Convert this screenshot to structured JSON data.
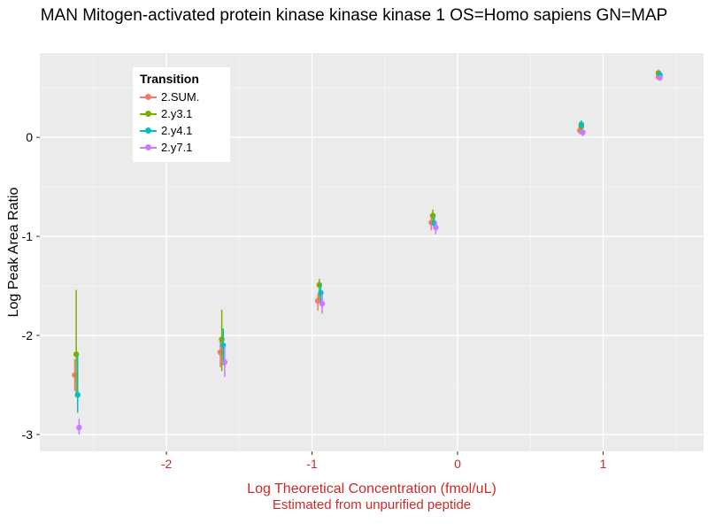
{
  "chart_data": {
    "type": "scatter",
    "title": "MAN Mitogen-activated protein kinase kinase kinase 1 OS=Homo sapiens GN=MAP",
    "ylabel": "Log Peak Area Ratio",
    "xlabel": "Log Theoretical Concentration (fmol/uL)",
    "xlabel2": "Estimated from unpurified peptide",
    "legend_title": "Transition",
    "legend_position": "top-left-inside",
    "grid": true,
    "xlim": [
      -2.87,
      1.69
    ],
    "ylim": [
      -3.17,
      0.85
    ],
    "x_ticks": [
      -2,
      -1,
      0,
      1
    ],
    "y_ticks": [
      0,
      -1,
      -2,
      -3
    ],
    "x_minor": [
      -2.5,
      -1.5,
      -0.5,
      0.5,
      1.5
    ],
    "y_minor": [
      0.5,
      -0.5,
      -1.5,
      -2.5
    ],
    "colors": {
      "panel_background": "#EBEBEB",
      "grid_major": "#FFFFFF",
      "grid_minor": "#F5F5F5",
      "axis_text_x": "#CC2929",
      "axis_text_y": "#000000",
      "axis_label_x": "#CC2929",
      "tick_mark": "#333333",
      "title": "#000000"
    },
    "series": [
      {
        "name": "2.SUM.",
        "color": "#F8766D",
        "points": [
          {
            "x": -2.63,
            "y": -2.4,
            "lo": -2.56,
            "hi": -2.24
          },
          {
            "x": -1.63,
            "y": -2.17,
            "lo": -2.32,
            "hi": -2.03
          },
          {
            "x": -0.96,
            "y": -1.65,
            "lo": -1.75,
            "hi": -1.58
          },
          {
            "x": -0.18,
            "y": -0.86,
            "lo": -0.94,
            "hi": -0.79
          },
          {
            "x": 0.84,
            "y": 0.07,
            "lo": 0.03,
            "hi": 0.11
          },
          {
            "x": 1.38,
            "y": 0.61,
            "lo": 0.58,
            "hi": 0.64
          }
        ]
      },
      {
        "name": "2.y3.1",
        "color": "#7CAE00",
        "points": [
          {
            "x": -2.62,
            "y": -2.19,
            "lo": -2.61,
            "hi": -1.54
          },
          {
            "x": -1.62,
            "y": -2.04,
            "lo": -2.36,
            "hi": -1.74
          },
          {
            "x": -0.95,
            "y": -1.49,
            "lo": -1.63,
            "hi": -1.43
          },
          {
            "x": -0.17,
            "y": -0.79,
            "lo": -0.88,
            "hi": -0.73
          },
          {
            "x": 0.85,
            "y": 0.11,
            "lo": 0.07,
            "hi": 0.15
          },
          {
            "x": 1.38,
            "y": 0.65,
            "lo": 0.62,
            "hi": 0.68
          }
        ]
      },
      {
        "name": "2.y4.1",
        "color": "#00BFC4",
        "points": [
          {
            "x": -2.61,
            "y": -2.6,
            "lo": -2.78,
            "hi": -2.2
          },
          {
            "x": -1.61,
            "y": -2.1,
            "lo": -2.3,
            "hi": -1.93
          },
          {
            "x": -0.94,
            "y": -1.57,
            "lo": -1.7,
            "hi": -1.47
          },
          {
            "x": -0.16,
            "y": -0.87,
            "lo": -0.93,
            "hi": -0.8
          },
          {
            "x": 0.85,
            "y": 0.13,
            "lo": 0.09,
            "hi": 0.17
          },
          {
            "x": 1.39,
            "y": 0.63,
            "lo": 0.6,
            "hi": 0.66
          }
        ]
      },
      {
        "name": "2.y7.1",
        "color": "#C77CFF",
        "points": [
          {
            "x": -2.6,
            "y": -2.93,
            "lo": -3.0,
            "hi": -2.84
          },
          {
            "x": -1.6,
            "y": -2.27,
            "lo": -2.42,
            "hi": -2.1
          },
          {
            "x": -0.93,
            "y": -1.68,
            "lo": -1.78,
            "hi": -1.58
          },
          {
            "x": -0.15,
            "y": -0.91,
            "lo": -0.98,
            "hi": -0.84
          },
          {
            "x": 0.86,
            "y": 0.05,
            "lo": 0.01,
            "hi": 0.09
          },
          {
            "x": 1.39,
            "y": 0.6,
            "lo": 0.57,
            "hi": 0.63
          }
        ]
      }
    ]
  }
}
